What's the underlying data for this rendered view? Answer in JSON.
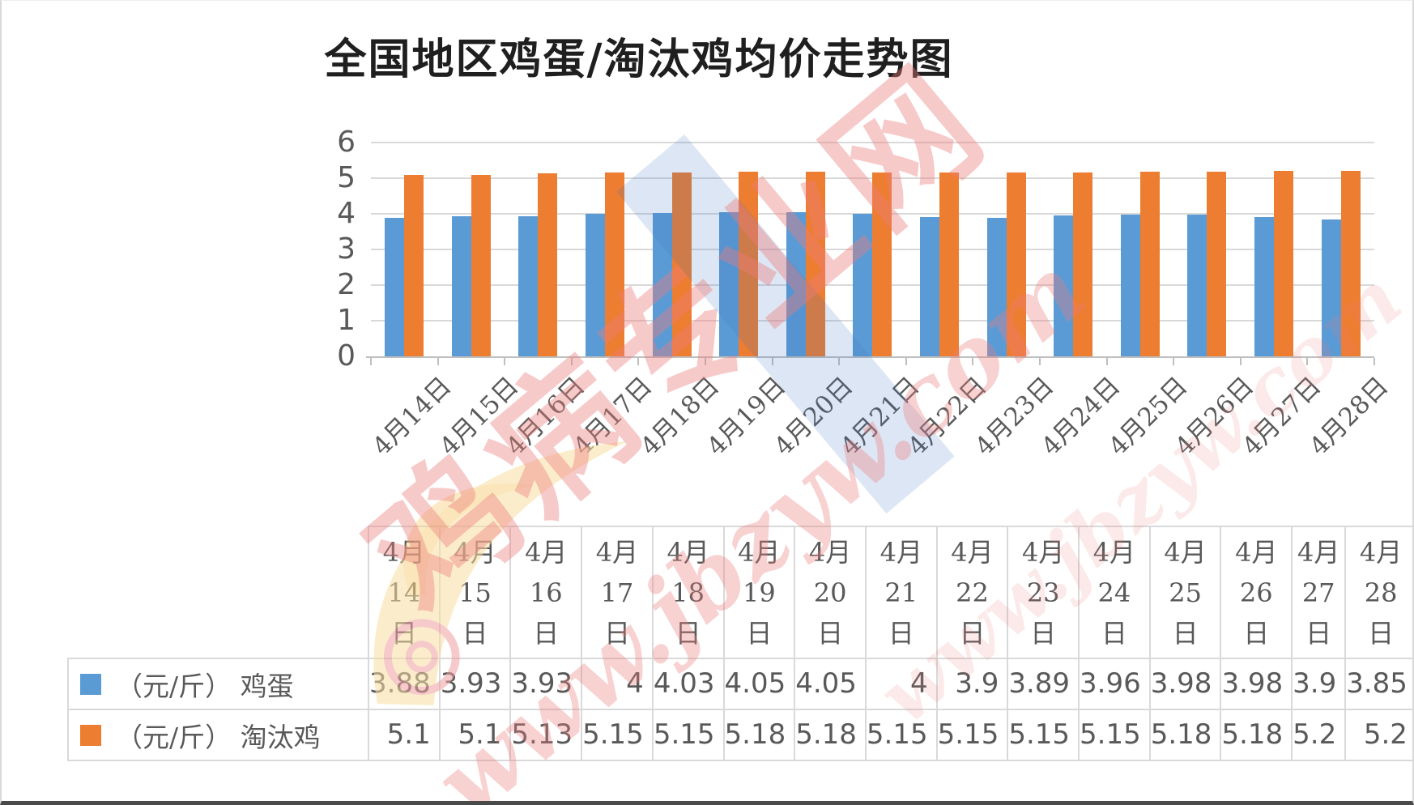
{
  "title": "全国地区鸡蛋/淘汰鸡均价走势图",
  "watermark": {
    "site_name": "鸡病专业网",
    "site_url": "www.jbzyw.com"
  },
  "chart_data": {
    "type": "bar",
    "title": "全国地区鸡蛋/淘汰鸡均价走势图",
    "categories": [
      "4月14日",
      "4月15日",
      "4月16日",
      "4月17日",
      "4月18日",
      "4月19日",
      "4月20日",
      "4月21日",
      "4月22日",
      "4月23日",
      "4月24日",
      "4月25日",
      "4月26日",
      "4月27日",
      "4月28日"
    ],
    "series": [
      {
        "name": "（元/斤） 鸡蛋",
        "color": "#5B9BD5",
        "values": [
          3.88,
          3.93,
          3.93,
          4,
          4.03,
          4.05,
          4.05,
          4,
          3.9,
          3.89,
          3.96,
          3.98,
          3.98,
          3.9,
          3.85
        ]
      },
      {
        "name": "（元/斤） 淘汰鸡",
        "color": "#ED7D31",
        "values": [
          5.1,
          5.1,
          5.13,
          5.15,
          5.15,
          5.18,
          5.18,
          5.15,
          5.15,
          5.15,
          5.15,
          5.18,
          5.18,
          5.2,
          5.2
        ]
      }
    ],
    "ylim": [
      0,
      6
    ],
    "yticks": [
      0,
      1,
      2,
      3,
      4,
      5,
      6
    ],
    "grid": true,
    "legend_position": "data-table-left",
    "xlabel": "",
    "ylabel": ""
  },
  "table": {
    "col_headers": [
      "4月14日",
      "4月15日",
      "4月16日",
      "4月17日",
      "4月18日",
      "4月19日",
      "4月20日",
      "4月21日",
      "4月22日",
      "4月23日",
      "4月24日",
      "4月25日",
      "4月26日",
      "4月27日",
      "4月28日"
    ],
    "rows": [
      {
        "label": "（元/斤） 鸡蛋",
        "swatch_color": "#5B9BD5",
        "values": [
          "3.88",
          "3.93",
          "3.93",
          "4",
          "4.03",
          "4.05",
          "4.05",
          "4",
          "3.9",
          "3.89",
          "3.96",
          "3.98",
          "3.98",
          "3.9",
          "3.85"
        ]
      },
      {
        "label": "（元/斤） 淘汰鸡",
        "swatch_color": "#ED7D31",
        "values": [
          "5.1",
          "5.1",
          "5.13",
          "5.15",
          "5.15",
          "5.18",
          "5.18",
          "5.15",
          "5.15",
          "5.15",
          "5.15",
          "5.18",
          "5.18",
          "5.2",
          "5.2"
        ]
      }
    ]
  },
  "colors": {
    "egg_series": "#5B9BD5",
    "chicken_series": "#ED7D31",
    "gridline": "#D9D9D9",
    "axis": "#BFBFBF",
    "text": "#595959",
    "title_text": "#1F1F1F",
    "table_border": "#D9D9D9",
    "watermark_pink": "#ED7C7C",
    "watermark_yellow": "#F8DFA3",
    "watermark_ribbon_blue": "#4472C4"
  }
}
